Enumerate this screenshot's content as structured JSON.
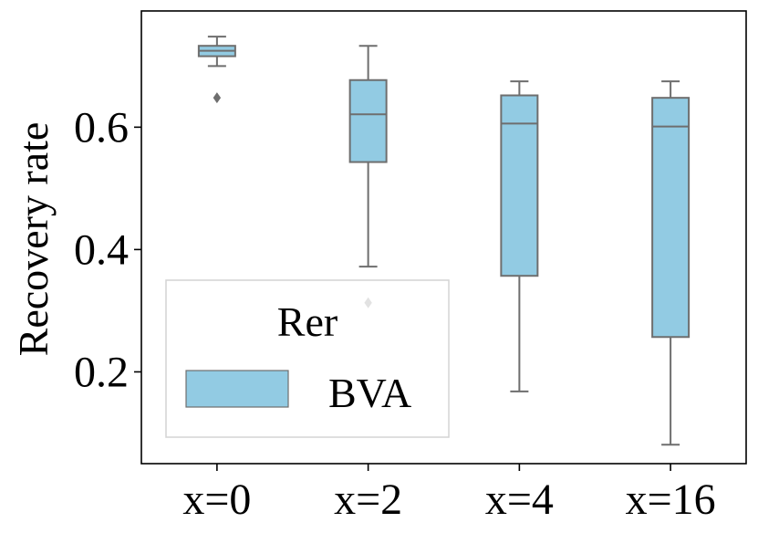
{
  "chart_data": {
    "type": "box",
    "title": "",
    "xlabel": "",
    "ylabel": "Recovery rate",
    "categories": [
      "x=0",
      "x=2",
      "x=4",
      "x=16"
    ],
    "yticks": [
      "0.2",
      "0.4",
      "0.6"
    ],
    "ylim": [
      0.05,
      0.79
    ],
    "series": [
      {
        "name": "BVA",
        "color": "#92CBE3",
        "boxes": [
          {
            "category": "x=0",
            "whisker_low": 0.7,
            "q1": 0.716,
            "median": 0.725,
            "q3": 0.733,
            "whisker_high": 0.748,
            "outliers": [
              0.648
            ]
          },
          {
            "category": "x=2",
            "whisker_low": 0.372,
            "q1": 0.543,
            "median": 0.621,
            "q3": 0.677,
            "whisker_high": 0.733,
            "outliers": [
              0.313
            ]
          },
          {
            "category": "x=4",
            "whisker_low": 0.168,
            "q1": 0.357,
            "median": 0.606,
            "q3": 0.652,
            "whisker_high": 0.675,
            "outliers": []
          },
          {
            "category": "x=16",
            "whisker_low": 0.081,
            "q1": 0.257,
            "median": 0.601,
            "q3": 0.648,
            "whisker_high": 0.675,
            "outliers": []
          }
        ]
      }
    ],
    "legend": {
      "title": "Rer",
      "position": "lower-left",
      "entries": [
        "BVA"
      ]
    },
    "grid": false
  }
}
